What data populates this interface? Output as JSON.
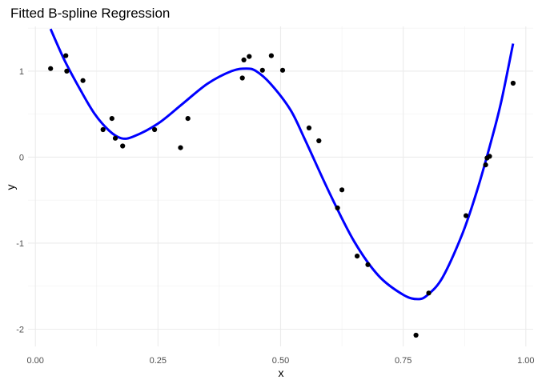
{
  "chart_data": {
    "type": "scatter",
    "title": "Fitted B-spline Regression",
    "xlabel": "x",
    "ylabel": "y",
    "xlim": [
      -0.015,
      1.015
    ],
    "ylim": [
      -2.2,
      1.52
    ],
    "x_ticks": [
      0.0,
      0.25,
      0.5,
      0.75,
      1.0
    ],
    "x_tick_labels": [
      "0.00",
      "0.25",
      "0.50",
      "0.75",
      "1.00"
    ],
    "y_ticks": [
      -2,
      -1,
      0,
      1
    ],
    "y_tick_labels": [
      "-2",
      "-1",
      "0",
      "1"
    ],
    "grid": true,
    "legend": "none",
    "series": [
      {
        "type": "points",
        "color": "#000000",
        "points": [
          [
            0.031,
            1.03
          ],
          [
            0.062,
            1.18
          ],
          [
            0.064,
            1.0
          ],
          [
            0.097,
            0.89
          ],
          [
            0.138,
            0.32
          ],
          [
            0.156,
            0.45
          ],
          [
            0.163,
            0.22
          ],
          [
            0.178,
            0.13
          ],
          [
            0.243,
            0.32
          ],
          [
            0.296,
            0.11
          ],
          [
            0.311,
            0.45
          ],
          [
            0.422,
            0.92
          ],
          [
            0.425,
            1.13
          ],
          [
            0.436,
            1.17
          ],
          [
            0.463,
            1.01
          ],
          [
            0.481,
            1.18
          ],
          [
            0.504,
            1.01
          ],
          [
            0.558,
            0.34
          ],
          [
            0.578,
            0.19
          ],
          [
            0.616,
            -0.59
          ],
          [
            0.625,
            -0.38
          ],
          [
            0.656,
            -1.15
          ],
          [
            0.678,
            -1.25
          ],
          [
            0.776,
            -2.07
          ],
          [
            0.802,
            -1.58
          ],
          [
            0.878,
            -0.68
          ],
          [
            0.918,
            -0.09
          ],
          [
            0.921,
            -0.01
          ],
          [
            0.926,
            0.01
          ],
          [
            0.974,
            0.86
          ]
        ]
      },
      {
        "type": "line",
        "color": "#0000ff",
        "points": [
          [
            0.031,
            1.49
          ],
          [
            0.06,
            1.12
          ],
          [
            0.09,
            0.8
          ],
          [
            0.12,
            0.51
          ],
          [
            0.15,
            0.31
          ],
          [
            0.175,
            0.22
          ],
          [
            0.2,
            0.24
          ],
          [
            0.25,
            0.39
          ],
          [
            0.3,
            0.62
          ],
          [
            0.35,
            0.85
          ],
          [
            0.4,
            1.0
          ],
          [
            0.43,
            1.03
          ],
          [
            0.45,
            1.0
          ],
          [
            0.48,
            0.85
          ],
          [
            0.52,
            0.55
          ],
          [
            0.55,
            0.2
          ],
          [
            0.6,
            -0.42
          ],
          [
            0.65,
            -0.98
          ],
          [
            0.7,
            -1.38
          ],
          [
            0.75,
            -1.6
          ],
          [
            0.78,
            -1.65
          ],
          [
            0.8,
            -1.6
          ],
          [
            0.83,
            -1.4
          ],
          [
            0.87,
            -0.9
          ],
          [
            0.9,
            -0.4
          ],
          [
            0.93,
            0.2
          ],
          [
            0.95,
            0.65
          ],
          [
            0.974,
            1.32
          ]
        ]
      }
    ]
  }
}
